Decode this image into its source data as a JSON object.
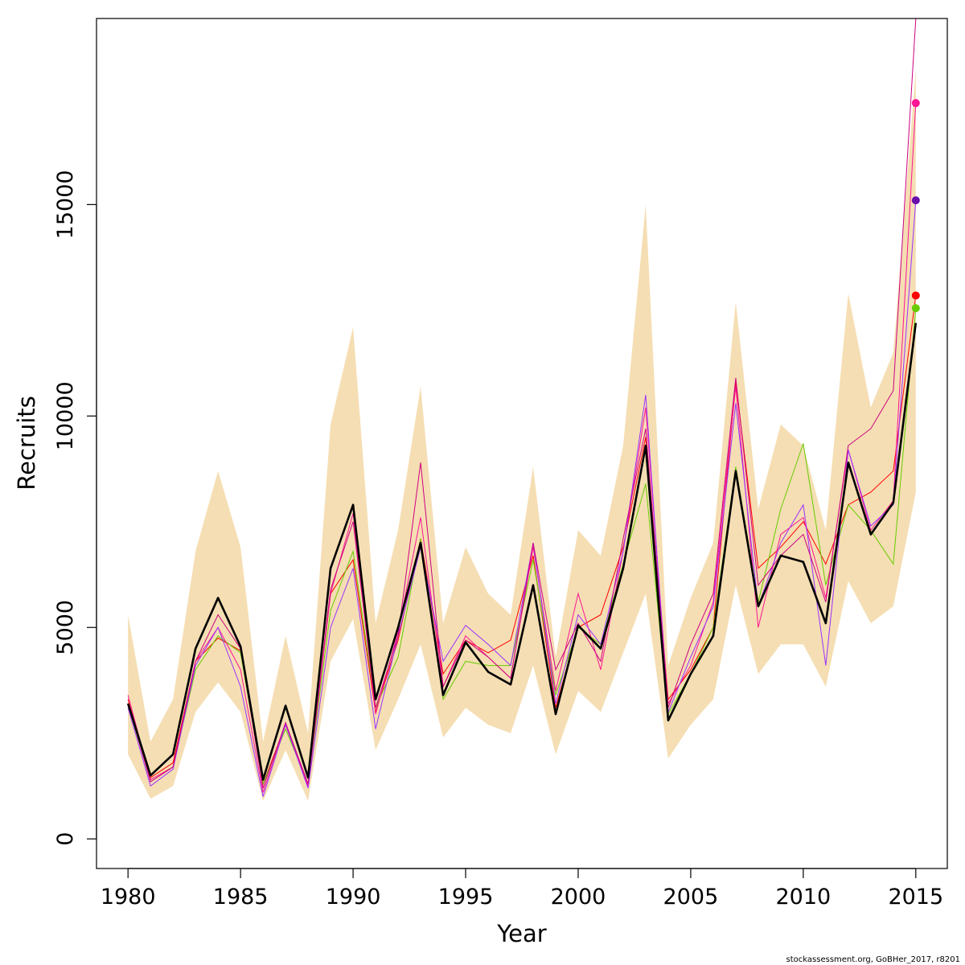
{
  "chart_data": {
    "type": "line",
    "xlabel": "Year",
    "ylabel": "Recruits",
    "xlim": [
      1978.6,
      2016.4
    ],
    "ylim": [
      -700,
      19400
    ],
    "x_ticks": [
      1980,
      1985,
      1990,
      1995,
      2000,
      2005,
      2010,
      2015
    ],
    "y_ticks": [
      0,
      5000,
      10000,
      15000
    ],
    "band_color": "#f5deb3",
    "main_color": "#000000",
    "x": [
      1980,
      1981,
      1982,
      1983,
      1984,
      1985,
      1986,
      1987,
      1988,
      1989,
      1990,
      1991,
      1992,
      1993,
      1994,
      1995,
      1996,
      1997,
      1998,
      1999,
      2000,
      2001,
      2002,
      2003,
      2004,
      2005,
      2006,
      2007,
      2008,
      2009,
      2010,
      2011,
      2012,
      2013,
      2014,
      2015
    ],
    "band_upper": [
      5300,
      2300,
      3300,
      6800,
      8700,
      6900,
      2300,
      4800,
      2500,
      9800,
      12100,
      5100,
      7300,
      10700,
      5100,
      6900,
      5800,
      5300,
      8800,
      4300,
      7300,
      6700,
      9300,
      15000,
      4100,
      5700,
      7000,
      12700,
      7800,
      9800,
      9300,
      7300,
      12900,
      10200,
      11500,
      18200
    ],
    "band_lower": [
      2000,
      950,
      1250,
      3000,
      3700,
      3000,
      900,
      2100,
      900,
      4200,
      5200,
      2100,
      3300,
      4600,
      2400,
      3100,
      2700,
      2500,
      4100,
      2000,
      3500,
      3000,
      4400,
      5800,
      1900,
      2700,
      3300,
      6000,
      3900,
      4600,
      4600,
      3600,
      6100,
      5100,
      5500,
      8200
    ],
    "series_main": [
      3200,
      1500,
      2000,
      4500,
      5700,
      4550,
      1400,
      3150,
      1450,
      6400,
      7900,
      3300,
      5000,
      7000,
      3400,
      4650,
      3950,
      3650,
      6000,
      2950,
      5050,
      4500,
      6400,
      9300,
      2800,
      3900,
      4800,
      8700,
      5500,
      6700,
      6550,
      5100,
      8900,
      7200,
      7950,
      12200
    ],
    "peels": [
      {
        "color": "#ff0000",
        "values": [
          3300,
          1450,
          1800,
          4200,
          4750,
          4450,
          1300,
          2700,
          1300,
          5800,
          6600,
          3000,
          4700,
          7100,
          3900,
          4700,
          4400,
          4700,
          6700,
          3100,
          5000,
          5300,
          6900,
          9500,
          3300,
          4000,
          5000,
          10800,
          6400,
          6900,
          7500,
          6500,
          7900,
          8200,
          8700,
          12850
        ]
      },
      {
        "color": "#66cd00",
        "values": [
          3150,
          1400,
          1700,
          4000,
          4800,
          4400,
          1300,
          2600,
          1300,
          5400,
          6800,
          3100,
          4300,
          7100,
          3300,
          4200,
          4100,
          4100,
          6600,
          3400,
          5000,
          4600,
          6500,
          8400,
          2950,
          3900,
          5000,
          8800,
          5600,
          7800,
          9350,
          6000,
          7900,
          7300,
          6500,
          12550
        ]
      },
      {
        "color": "#ff1493",
        "values": [
          3400,
          1400,
          1700,
          4200,
          5000,
          4000,
          1100,
          2700,
          1250,
          5800,
          7700,
          2950,
          4900,
          7600,
          3600,
          4800,
          4300,
          3800,
          6900,
          3500,
          5800,
          4000,
          6800,
          10200,
          3200,
          4100,
          5600,
          10700,
          5000,
          7200,
          7600,
          5700,
          9200,
          7300,
          8000,
          17400
        ]
      },
      {
        "color": "#9b30ff",
        "values": [
          3100,
          1250,
          1650,
          4100,
          5000,
          3600,
          1000,
          2700,
          1200,
          5000,
          6400,
          2600,
          4800,
          6900,
          4200,
          5050,
          4600,
          4100,
          7000,
          3200,
          5300,
          4600,
          6800,
          10500,
          3000,
          4300,
          5500,
          10300,
          5500,
          7000,
          7900,
          4100,
          9200,
          7400,
          7900,
          15100
        ]
      },
      {
        "color": "#cd0082",
        "values": [
          3200,
          1350,
          1700,
          4200,
          5300,
          4500,
          1200,
          2750,
          1300,
          5900,
          7500,
          3100,
          4800,
          8900,
          3600,
          4700,
          4300,
          3800,
          7000,
          4000,
          5100,
          4200,
          7100,
          9700,
          3100,
          4600,
          5800,
          10900,
          6000,
          6700,
          7200,
          5600,
          9300,
          9700,
          10600,
          19400
        ]
      }
    ],
    "end_points": [
      {
        "color": "#ff1493",
        "x": 2015,
        "y": 17400
      },
      {
        "color": "#6a0dad",
        "x": 2015,
        "y": 15100
      },
      {
        "color": "#ff0000",
        "x": 2015,
        "y": 12850
      },
      {
        "color": "#66cd00",
        "x": 2015,
        "y": 12550
      }
    ]
  },
  "footer": {
    "credit": "stockassessment.org, GoBHer_2017, r8201"
  }
}
